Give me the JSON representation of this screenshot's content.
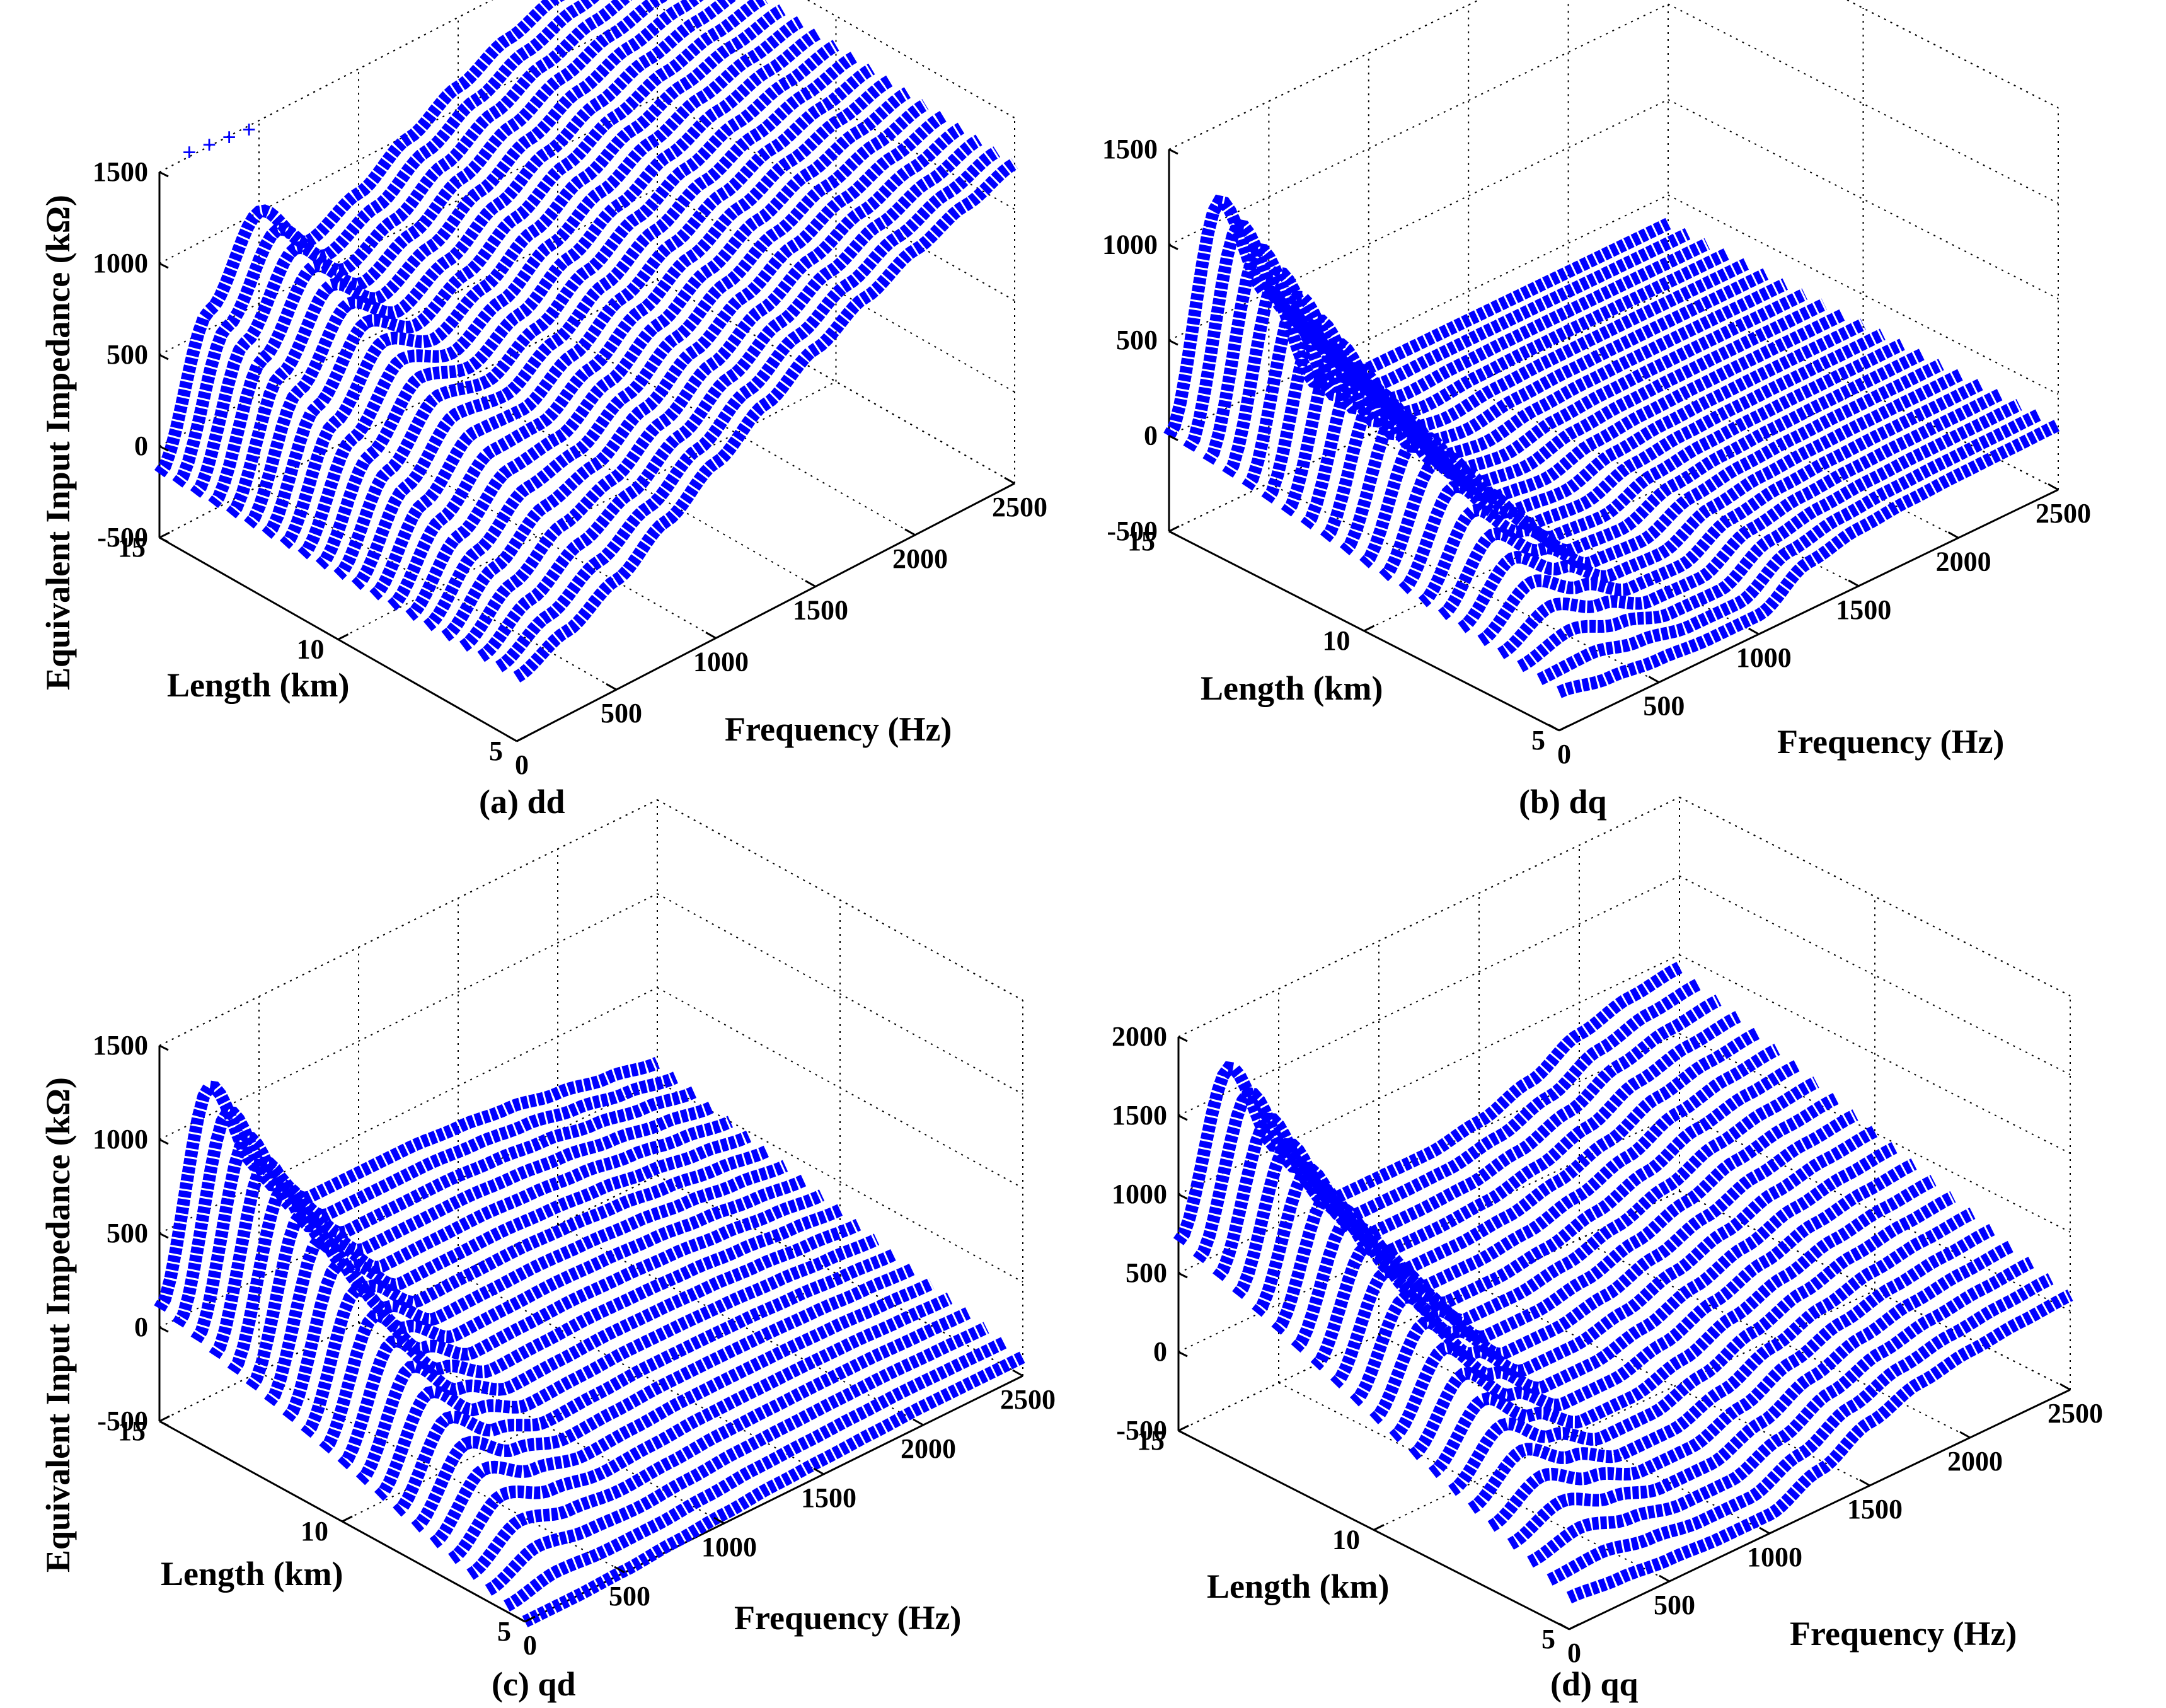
{
  "figure": {
    "shared_zlabel": "Equivalent Input Impedance (kΩ)",
    "series_color": "#0000ff",
    "marker": "+"
  },
  "chart_data": [
    {
      "id": "dd",
      "type": "scatter3d",
      "caption": "(a) dd",
      "xlabel": "Frequency (Hz)",
      "ylabel": "Length (km)",
      "zlabel": "Equivalent Input Impedance (kΩ)",
      "xlim": [
        0,
        2500
      ],
      "ylim": [
        5,
        15
      ],
      "zlim": [
        -500,
        1500
      ],
      "xticks": [
        "0",
        "500",
        "1000",
        "1500",
        "2000",
        "2500"
      ],
      "yticks": [
        "5",
        "10",
        "15"
      ],
      "zticks": [
        "-500",
        "0",
        "500",
        "1000",
        "1500"
      ],
      "lengths_km": [
        5,
        5.5,
        6,
        6.5,
        7,
        7.5,
        8,
        8.5,
        9,
        9.5,
        10,
        10.5,
        11,
        11.5,
        12,
        12.5,
        13,
        13.5,
        14,
        14.5,
        15
      ],
      "surface": "low-frequency peak near 1000 kΩ for long lines; rising toward 1300 kΩ at 2500 Hz for short lines; outlier markers near 1250 kΩ at 15 km",
      "frequency_samples": [
        0,
        250,
        500,
        750,
        1000,
        1250,
        1500,
        1750,
        2000,
        2250,
        2500
      ],
      "z_at_5km": [
        -150,
        -40,
        100,
        280,
        460,
        640,
        800,
        940,
        1060,
        1160,
        1250
      ],
      "z_at_15km": [
        -150,
        600,
        1000,
        700,
        820,
        980,
        1120,
        1240,
        1330,
        1390,
        1430
      ]
    },
    {
      "id": "dq",
      "type": "scatter3d",
      "caption": "(b) dq",
      "xlabel": "Frequency (Hz)",
      "ylabel": "Length (km)",
      "zlabel": "",
      "xlim": [
        0,
        2500
      ],
      "ylim": [
        5,
        15
      ],
      "zlim": [
        -500,
        1500
      ],
      "xticks": [
        "0",
        "500",
        "1000",
        "1500",
        "2000",
        "2500"
      ],
      "yticks": [
        "5",
        "10",
        "15"
      ],
      "zticks": [
        "-500",
        "0",
        "500",
        "1000",
        "1500"
      ],
      "lengths_km": [
        5,
        5.5,
        6,
        6.5,
        7,
        7.5,
        8,
        8.5,
        9,
        9.5,
        10,
        10.5,
        11,
        11.5,
        12,
        12.5,
        13,
        13.5,
        14,
        14.5,
        15
      ],
      "surface": "sharp peak about 1100 kΩ at low frequency for long lines, then flat near -150 to -400 kΩ",
      "frequency_samples": [
        0,
        250,
        500,
        750,
        1000,
        1250,
        1500,
        1750,
        2000,
        2250,
        2500
      ],
      "z_at_5km": [
        -300,
        -350,
        -380,
        -400,
        -400,
        -250,
        -200,
        -180,
        -170,
        -165,
        -160
      ],
      "z_at_15km": [
        0,
        1100,
        500,
        -100,
        -150,
        -150,
        -150,
        -150,
        -150,
        -150,
        -150
      ]
    },
    {
      "id": "qd",
      "type": "scatter3d",
      "caption": "(c) qd",
      "xlabel": "Frequency (Hz)",
      "ylabel": "Length (km)",
      "zlabel": "Equivalent Input Impedance (kΩ)",
      "xlim": [
        0,
        2500
      ],
      "ylim": [
        5,
        15
      ],
      "zlim": [
        -500,
        1500
      ],
      "xticks": [
        "0",
        "500",
        "1000",
        "1500",
        "2000",
        "2500"
      ],
      "yticks": [
        "5",
        "10",
        "15"
      ],
      "zticks": [
        "-500",
        "0",
        "500",
        "1000",
        "1500"
      ],
      "lengths_km": [
        5,
        5.5,
        6,
        6.5,
        7,
        7.5,
        8,
        8.5,
        9,
        9.5,
        10,
        10.5,
        11,
        11.5,
        12,
        12.5,
        13,
        13.5,
        14,
        14.5,
        15
      ],
      "surface": "peak about 1150 kΩ at low frequency for long lines; broad plateau near 300 kΩ decaying to -500 kΩ",
      "frequency_samples": [
        0,
        250,
        500,
        750,
        1000,
        1250,
        1500,
        1750,
        2000,
        2250,
        2500
      ],
      "z_at_5km": [
        -500,
        -500,
        -490,
        -470,
        -450,
        -430,
        -420,
        -410,
        -400,
        -400,
        -400
      ],
      "z_at_15km": [
        100,
        1150,
        600,
        300,
        300,
        300,
        280,
        250,
        200,
        150,
        100
      ]
    },
    {
      "id": "qq",
      "type": "scatter3d",
      "caption": "(d) qq",
      "xlabel": "Frequency (Hz)",
      "ylabel": "Length (km)",
      "zlabel": "",
      "xlim": [
        0,
        2500
      ],
      "ylim": [
        5,
        15
      ],
      "zlim": [
        -500,
        2000
      ],
      "xticks": [
        "0",
        "500",
        "1000",
        "1500",
        "2000",
        "2500"
      ],
      "yticks": [
        "5",
        "10",
        "15"
      ],
      "zticks": [
        "-500",
        "0",
        "500",
        "1000",
        "1500",
        "2000"
      ],
      "lengths_km": [
        5,
        5.5,
        6,
        6.5,
        7,
        7.5,
        8,
        8.5,
        9,
        9.5,
        10,
        10.5,
        11,
        11.5,
        12,
        12.5,
        13,
        13.5,
        14,
        14.5,
        15
      ],
      "surface": "peak about 1650 kΩ at low frequency for long lines; high-frequency ridges rising to 900 kΩ",
      "frequency_samples": [
        0,
        250,
        500,
        750,
        1000,
        1250,
        1500,
        1750,
        2000,
        2250,
        2500
      ],
      "z_at_5km": [
        -300,
        -330,
        -360,
        -380,
        -380,
        -250,
        -100,
        0,
        50,
        80,
        100
      ],
      "z_at_15km": [
        700,
        1650,
        1000,
        500,
        500,
        500,
        550,
        650,
        800,
        880,
        920
      ]
    }
  ]
}
